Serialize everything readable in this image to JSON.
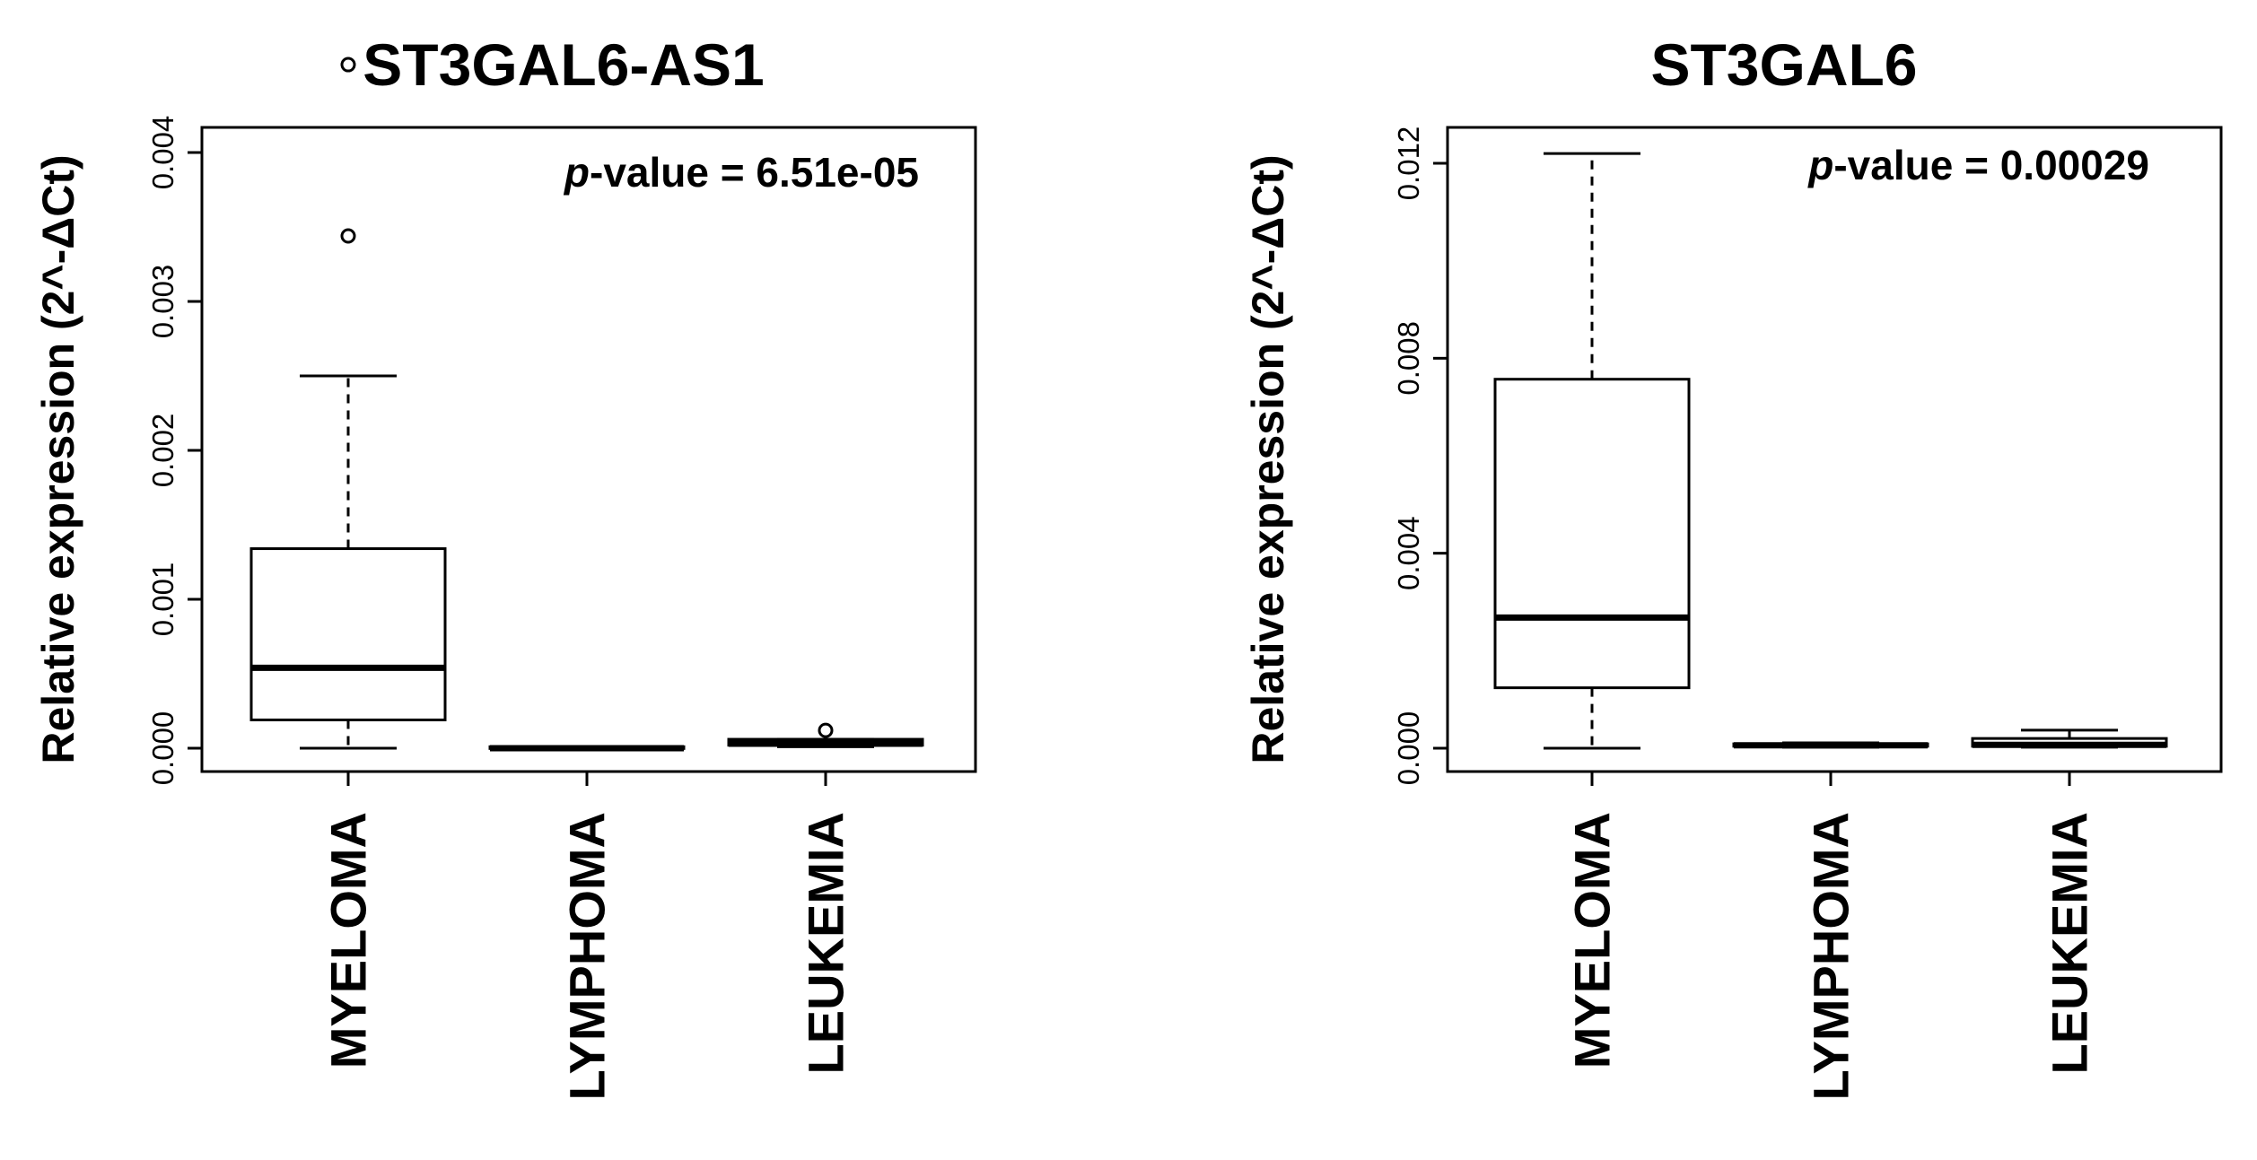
{
  "chart_data": [
    {
      "type": "boxplot",
      "title": "ST3GAL6-AS1",
      "ylabel": "Relative  expression (2^-ΔCt)",
      "ylim": [
        0,
        0.0045
      ],
      "yticks": [
        0.0,
        0.001,
        0.002,
        0.003,
        0.004
      ],
      "ytick_labels": [
        "0.000",
        "0.001",
        "0.002",
        "0.003",
        "0.004"
      ],
      "categories": [
        "MYELOMA",
        "LYMPHOMA",
        "LEUKEMIA"
      ],
      "annotation": {
        "p_label": "p",
        "text": "-value = 6.51e-05"
      },
      "boxes": [
        {
          "name": "MYELOMA",
          "whisker_low": 0.0,
          "q1": 0.00019,
          "median": 0.00054,
          "q3": 0.00134,
          "whisker_high": 0.0025,
          "outliers": [
            0.00344,
            0.00459
          ]
        },
        {
          "name": "LYMPHOMA",
          "whisker_low": 0.0,
          "q1": 0.0,
          "median": 0.0,
          "q3": 1e-05,
          "whisker_high": 1e-05,
          "outliers": []
        },
        {
          "name": "LEUKEMIA",
          "whisker_low": 1e-05,
          "q1": 2e-05,
          "median": 3e-05,
          "q3": 6e-05,
          "whisker_high": 6e-05,
          "outliers": [
            0.00012
          ]
        }
      ]
    },
    {
      "type": "boxplot",
      "title": "ST3GAL6",
      "ylabel": "Relative  expression (2^-ΔCt)",
      "ylim": [
        0,
        0.0125
      ],
      "yticks": [
        0.0,
        0.004,
        0.008,
        0.012
      ],
      "ytick_labels": [
        "0.000",
        "0.004",
        "0.008",
        "0.012"
      ],
      "categories": [
        "MYELOMA",
        "LYMPHOMA",
        "LEUKEMIA"
      ],
      "annotation": {
        "p_label": "p",
        "text": "-value = 0.00029"
      },
      "boxes": [
        {
          "name": "MYELOMA",
          "whisker_low": 0.0,
          "q1": 0.00124,
          "median": 0.00268,
          "q3": 0.00757,
          "whisker_high": 0.0122,
          "outliers": []
        },
        {
          "name": "LYMPHOMA",
          "whisker_low": 2e-05,
          "q1": 4e-05,
          "median": 6e-05,
          "q3": 9e-05,
          "whisker_high": 0.00011,
          "outliers": []
        },
        {
          "name": "LEUKEMIA",
          "whisker_low": 2e-05,
          "q1": 4e-05,
          "median": 7e-05,
          "q3": 0.0002,
          "whisker_high": 0.00037,
          "outliers": []
        }
      ]
    }
  ]
}
